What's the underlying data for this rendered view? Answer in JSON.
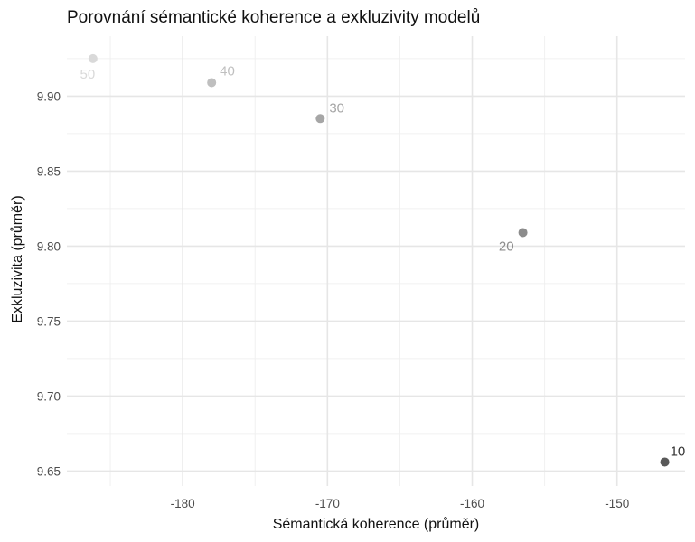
{
  "chart_data": {
    "type": "scatter",
    "title": "Porovnání sémantické koherence a exkluzivity modelů",
    "xlabel": "Sémantická koherence (průměr)",
    "ylabel": "Exkluzivita (průměr)",
    "xlim": [
      -188,
      -145.3
    ],
    "ylim": [
      9.64,
      9.94
    ],
    "xticks": [
      -180,
      -170,
      -160,
      -150
    ],
    "xtick_labels": [
      "-180",
      "-170",
      "-160",
      "-150"
    ],
    "yticks": [
      9.65,
      9.7,
      9.75,
      9.8,
      9.85,
      9.9
    ],
    "ytick_labels": [
      "9.65",
      "9.70",
      "9.75",
      "9.80",
      "9.85",
      "9.90"
    ],
    "grid": true,
    "points": [
      {
        "label": "10",
        "x": -146.7,
        "y": 9.656,
        "color": "#595959"
      },
      {
        "label": "20",
        "x": -156.5,
        "y": 9.809,
        "color": "#8c8c8c"
      },
      {
        "label": "30",
        "x": -170.5,
        "y": 9.885,
        "color": "#a6a6a6"
      },
      {
        "label": "40",
        "x": -178.0,
        "y": 9.909,
        "color": "#bfbfbf"
      },
      {
        "label": "50",
        "x": -186.2,
        "y": 9.925,
        "color": "#d9d9d9"
      }
    ]
  }
}
